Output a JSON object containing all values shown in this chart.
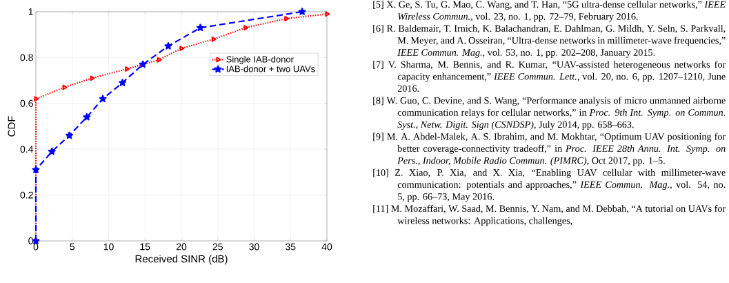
{
  "chart_data": {
    "type": "line",
    "xlabel": "Received SINR (dB)",
    "ylabel": "CDF",
    "xlim": [
      0,
      40
    ],
    "xticks": [
      0,
      5,
      10,
      15,
      20,
      25,
      30,
      35,
      40
    ],
    "ylim": [
      0,
      1
    ],
    "yticks": [
      0,
      0.2,
      0.4,
      0.6,
      0.8,
      1
    ],
    "grid": true,
    "legend": "top right",
    "series": [
      {
        "name": "Single IAB-donor",
        "color": "#ff0000",
        "marker": "triangle",
        "line_style": "dotted",
        "x": [
          0,
          0,
          3.9,
          7.7,
          12.5,
          16.9,
          20.0,
          24.4,
          28.8,
          34.4,
          40
        ],
        "values": [
          0,
          0.62,
          0.67,
          0.71,
          0.75,
          0.79,
          0.84,
          0.88,
          0.93,
          0.97,
          0.99
        ]
      },
      {
        "name": "IAB-donor + two UAVs",
        "color": "#0000ff",
        "marker": "star",
        "line_style": "dashed",
        "x": [
          0,
          0,
          2.2,
          4.6,
          7.0,
          9.2,
          11.9,
          14.7,
          18.2,
          22.6,
          36.6
        ],
        "values": [
          0,
          0.31,
          0.39,
          0.46,
          0.54,
          0.62,
          0.69,
          0.77,
          0.85,
          0.93,
          1.0
        ]
      }
    ],
    "annotations": [
      "[5] X. Ge, S. Tu, G. Mao, C. Wang, and T. Han, “5G ultra-dense cellular networks,” *IEEE Wireless Commun.*, vol. 23, no. 1, pp. 72–79, February 2016.",
      "[6] R. Baldemair, T. Irnich, K. Balachandran, E. Dahlman, G. Mildh, Y. Seln, S. Parkvall, M. Meyer, and A. Osseiran, “Ultra-dense networks in millimeter-wave frequencies,” *IEEE Commun. Mag.*, vol. 53, no. 1, pp. 202–208, January 2015.",
      "[7] V. Sharma, M. Bennis, and R. Kumar, “UAV-assisted heterogeneous networks for capacity enhancement,” *IEEE Commun. Lett.*, vol. 20, no. 6, pp. 1207–1210, June 2016.",
      "[8] W. Guo, C. Devine, and S. Wang, “Performance analysis of micro unmanned airborne communication relays for cellular networks,” in *Proc. 9th Int. Symp. on Commun. Syst., Netw. Digit. Sign (CSNDSP)*, July 2014, pp. 658–663.",
      "[9] M. A. Abdel-Malek, A. S. Ibrahim, and M. Mokhtar, “Optimum UAV positioning for better coverage-connectivity tradeoff,” in *Proc. IEEE 28th Annu. Int. Symp. on Pers., Indoor, Mobile Radio Commun. (PIMRC)*, Oct 2017, pp. 1–5.",
      "[10] Z. Xiao, P. Xia, and X. Xia, “Enabling UAV cellular with millimeter-wave communication: potentials and approaches,” *IEEE Commun. Mag.*, vol. 54, no. 5, pp. 66–73, May 2016.",
      "[11] M. Mozaffari, W. Saad, M. Bennis, Y. Nam, and M. Debbah, “A tutorial on UAVs for wireless networks: Applications, challenges,"
    ]
  }
}
